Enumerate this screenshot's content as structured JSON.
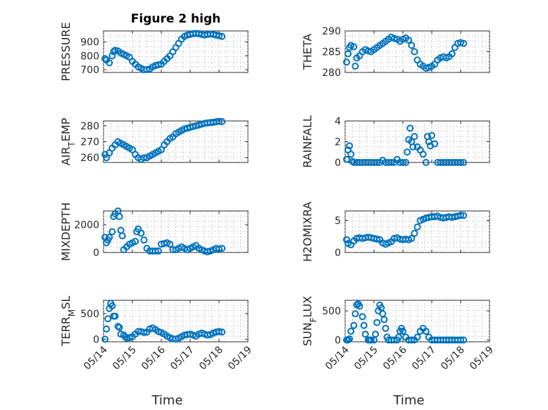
{
  "figure": {
    "title": "Figure 2 high",
    "background": "#ffffff",
    "marker_color": "#0072bd"
  },
  "chart_data": [
    {
      "type": "scatter",
      "ylabel": "PRESSURE",
      "xlabel": "",
      "ylim": [
        680,
        980
      ],
      "yticks": [
        700,
        800,
        900
      ],
      "x_ticks": [
        "05/14",
        "05/15",
        "05/16",
        "05/17",
        "05/18",
        "05/19"
      ],
      "show_x_tick_labels": false,
      "title": "Figure 2 high",
      "grid": true,
      "series": [
        {
          "x": [
            0.05,
            0.1,
            0.2,
            0.3,
            0.35,
            0.4,
            0.5,
            0.6,
            0.7,
            0.8,
            0.9,
            1.0,
            1.1,
            1.2,
            1.3,
            1.4,
            1.5,
            1.6,
            1.7,
            1.8,
            1.9,
            2.0,
            2.1,
            2.2,
            2.3,
            2.4,
            2.5,
            2.6,
            2.7,
            2.8,
            2.9,
            3.0,
            3.1,
            3.2,
            3.3,
            3.4,
            3.5,
            3.6,
            3.7,
            3.8,
            3.9,
            4.0,
            4.1
          ],
          "y": [
            780,
            770,
            750,
            800,
            830,
            840,
            835,
            820,
            810,
            800,
            790,
            760,
            740,
            720,
            710,
            700,
            700,
            705,
            720,
            730,
            735,
            740,
            760,
            780,
            800,
            830,
            860,
            890,
            920,
            940,
            950,
            955,
            960,
            962,
            960,
            955,
            950,
            955,
            958,
            955,
            950,
            945,
            940
          ]
        }
      ]
    },
    {
      "type": "scatter",
      "ylabel": "THETA",
      "xlabel": "",
      "ylim": [
        280,
        290
      ],
      "yticks": [
        280,
        285,
        290
      ],
      "x_ticks": [
        "05/14",
        "05/15",
        "05/16",
        "05/17",
        "05/18",
        "05/19"
      ],
      "show_x_tick_labels": false,
      "grid": true,
      "series": [
        {
          "x": [
            0.05,
            0.1,
            0.15,
            0.2,
            0.3,
            0.35,
            0.4,
            0.5,
            0.6,
            0.7,
            0.8,
            0.9,
            1.0,
            1.1,
            1.2,
            1.3,
            1.4,
            1.5,
            1.6,
            1.7,
            1.8,
            1.9,
            2.0,
            2.1,
            2.2,
            2.3,
            2.4,
            2.5,
            2.6,
            2.7,
            2.8,
            2.9,
            3.0,
            3.1,
            3.2,
            3.3,
            3.4,
            3.5,
            3.6,
            3.7,
            3.8,
            3.9,
            4.0,
            4.1
          ],
          "y": [
            282.5,
            284.5,
            286,
            286.5,
            286.2,
            281.5,
            283.5,
            284,
            285,
            285.5,
            285.2,
            285,
            285.5,
            286,
            286.5,
            287,
            287.5,
            288,
            288.5,
            288.2,
            288,
            287.5,
            288,
            288.3,
            287.8,
            286.5,
            285,
            283,
            282,
            281.5,
            281,
            281.2,
            281.5,
            282,
            283,
            283.5,
            283.8,
            283.5,
            283.8,
            284.5,
            286,
            287,
            287.2,
            287
          ]
        }
      ]
    },
    {
      "type": "scatter",
      "ylabel": "AIR_TEMP",
      "xlabel": "",
      "ylim": [
        257,
        283
      ],
      "yticks": [
        260,
        270,
        280
      ],
      "x_ticks": [
        "05/14",
        "05/15",
        "05/16",
        "05/17",
        "05/18",
        "05/19"
      ],
      "show_x_tick_labels": false,
      "grid": true,
      "series": [
        {
          "x": [
            0.05,
            0.1,
            0.2,
            0.3,
            0.4,
            0.5,
            0.6,
            0.7,
            0.8,
            0.9,
            1.0,
            1.1,
            1.2,
            1.3,
            1.4,
            1.5,
            1.6,
            1.7,
            1.8,
            1.9,
            2.0,
            2.1,
            2.2,
            2.3,
            2.4,
            2.5,
            2.6,
            2.7,
            2.8,
            2.9,
            3.0,
            3.1,
            3.2,
            3.3,
            3.4,
            3.5,
            3.6,
            3.7,
            3.8,
            3.9,
            4.0,
            4.1
          ],
          "y": [
            262,
            260,
            263,
            266,
            268,
            270,
            269,
            268,
            267,
            266,
            265,
            262,
            260,
            259,
            260,
            260,
            261,
            262,
            263,
            264,
            265,
            268,
            270,
            272,
            273,
            275,
            276,
            277,
            278,
            278.5,
            279,
            279.5,
            280,
            280.5,
            281,
            281.5,
            281.8,
            282,
            282.2,
            282.5,
            282.8,
            282.6
          ]
        }
      ]
    },
    {
      "type": "scatter",
      "ylabel": "RAINFALL",
      "xlabel": "",
      "ylim": [
        0,
        4
      ],
      "yticks": [
        0,
        2,
        4
      ],
      "x_ticks": [
        "05/14",
        "05/15",
        "05/16",
        "05/17",
        "05/18",
        "05/19"
      ],
      "show_x_tick_labels": false,
      "grid": true,
      "series": [
        {
          "x": [
            0.05,
            0.1,
            0.15,
            0.2,
            0.25,
            0.3,
            0.4,
            0.5,
            0.6,
            0.7,
            0.8,
            0.9,
            1.0,
            1.1,
            1.2,
            1.3,
            1.4,
            1.5,
            1.6,
            1.7,
            1.8,
            1.9,
            2.0,
            2.1,
            2.15,
            2.2,
            2.25,
            2.3,
            2.35,
            2.4,
            2.5,
            2.6,
            2.7,
            2.8,
            2.85,
            2.9,
            2.95,
            3.0,
            3.1,
            3.2,
            3.3,
            3.4,
            3.5,
            3.6,
            3.7,
            3.8,
            3.9,
            4.0,
            4.1
          ],
          "y": [
            0.3,
            1.2,
            1.6,
            0.8,
            0.1,
            0,
            0,
            0,
            0,
            0,
            0,
            0,
            0,
            0,
            0,
            0.2,
            0,
            0,
            0,
            0,
            0.3,
            0,
            0,
            0,
            1.0,
            2.2,
            3.3,
            2.0,
            1.5,
            2.5,
            1.5,
            1.2,
            0.8,
            0,
            2.5,
            2.0,
            1.6,
            2.6,
            1.8,
            0,
            0,
            0,
            0,
            0,
            0,
            0,
            0,
            0,
            0
          ]
        }
      ]
    },
    {
      "type": "scatter",
      "ylabel": "MIXDEPTH",
      "xlabel": "",
      "ylim": [
        0,
        3000
      ],
      "yticks": [
        0,
        2000
      ],
      "x_ticks": [
        "05/14",
        "05/15",
        "05/16",
        "05/17",
        "05/18",
        "05/19"
      ],
      "show_x_tick_labels": false,
      "grid": true,
      "series": [
        {
          "x": [
            0.05,
            0.1,
            0.15,
            0.2,
            0.3,
            0.35,
            0.4,
            0.5,
            0.55,
            0.6,
            0.65,
            0.7,
            0.8,
            0.9,
            1.0,
            1.1,
            1.15,
            1.2,
            1.3,
            1.4,
            1.5,
            1.6,
            1.7,
            1.8,
            1.9,
            2.0,
            2.1,
            2.2,
            2.3,
            2.4,
            2.5,
            2.6,
            2.7,
            2.8,
            2.9,
            3.0,
            3.1,
            3.2,
            3.3,
            3.4,
            3.5,
            3.6,
            3.7,
            3.8,
            3.9,
            4.0,
            4.1
          ],
          "y": [
            1100,
            700,
            900,
            1100,
            1500,
            2600,
            2800,
            3000,
            2600,
            1600,
            1200,
            200,
            400,
            600,
            700,
            800,
            1500,
            1700,
            1400,
            900,
            300,
            100,
            100,
            100,
            100,
            600,
            650,
            700,
            600,
            200,
            200,
            300,
            400,
            300,
            200,
            300,
            400,
            500,
            300,
            200,
            100,
            50,
            100,
            200,
            300,
            250,
            300
          ]
        }
      ]
    },
    {
      "type": "scatter",
      "ylabel": "H2OMIXRA",
      "xlabel": "",
      "ylim": [
        0,
        6.5
      ],
      "yticks": [
        0,
        5
      ],
      "x_ticks": [
        "05/14",
        "05/15",
        "05/16",
        "05/17",
        "05/18",
        "05/19"
      ],
      "show_x_tick_labels": false,
      "grid": true,
      "series": [
        {
          "x": [
            0.05,
            0.1,
            0.2,
            0.3,
            0.4,
            0.5,
            0.6,
            0.7,
            0.8,
            0.9,
            1.0,
            1.1,
            1.2,
            1.3,
            1.4,
            1.5,
            1.6,
            1.7,
            1.8,
            1.9,
            2.0,
            2.1,
            2.2,
            2.3,
            2.4,
            2.5,
            2.6,
            2.7,
            2.8,
            2.9,
            3.0,
            3.1,
            3.2,
            3.3,
            3.4,
            3.5,
            3.6,
            3.7,
            3.8,
            3.9,
            4.0,
            4.1
          ],
          "y": [
            2.0,
            1.4,
            1.2,
            1.8,
            2.2,
            2.3,
            2.2,
            2.3,
            2.4,
            2.3,
            2.2,
            2.1,
            2.0,
            1.5,
            1.3,
            1.5,
            1.7,
            2.2,
            2.3,
            2.1,
            2.0,
            2.1,
            2.0,
            2.2,
            3.0,
            4.0,
            5.0,
            5.2,
            5.4,
            5.5,
            5.6,
            5.6,
            5.7,
            5.5,
            5.4,
            5.5,
            5.6,
            5.5,
            5.6,
            5.7,
            5.8,
            5.8
          ]
        }
      ]
    },
    {
      "type": "scatter",
      "ylabel": "TERR_MSL",
      "xlabel": "Time",
      "ylim": [
        -50,
        760
      ],
      "yticks": [
        0,
        500
      ],
      "x_ticks": [
        "05/14",
        "05/15",
        "05/16",
        "05/17",
        "05/18",
        "05/19"
      ],
      "show_x_tick_labels": true,
      "grid": true,
      "series": [
        {
          "x": [
            0.05,
            0.1,
            0.15,
            0.2,
            0.25,
            0.3,
            0.35,
            0.4,
            0.5,
            0.55,
            0.6,
            0.7,
            0.75,
            0.8,
            0.9,
            1.0,
            1.1,
            1.2,
            1.3,
            1.4,
            1.5,
            1.6,
            1.7,
            1.8,
            1.9,
            2.0,
            2.1,
            2.2,
            2.3,
            2.4,
            2.5,
            2.6,
            2.7,
            2.8,
            2.9,
            3.0,
            3.1,
            3.2,
            3.3,
            3.4,
            3.5,
            3.6,
            3.7,
            3.8,
            3.9,
            4.0,
            4.1
          ],
          "y": [
            0,
            200,
            400,
            600,
            700,
            650,
            450,
            450,
            250,
            230,
            100,
            80,
            50,
            20,
            30,
            50,
            100,
            150,
            150,
            130,
            140,
            200,
            220,
            190,
            150,
            130,
            100,
            60,
            30,
            10,
            0,
            20,
            50,
            80,
            90,
            100,
            80,
            60,
            100,
            120,
            100,
            80,
            90,
            120,
            140,
            150,
            140
          ]
        }
      ]
    },
    {
      "type": "scatter",
      "ylabel": "SUN_FLUX",
      "xlabel": "Time",
      "ylim": [
        -30,
        680
      ],
      "yticks": [
        0,
        500
      ],
      "x_ticks": [
        "05/14",
        "05/15",
        "05/16",
        "05/17",
        "05/18",
        "05/19"
      ],
      "show_x_tick_labels": true,
      "grid": true,
      "series": [
        {
          "x": [
            0.05,
            0.1,
            0.15,
            0.2,
            0.3,
            0.35,
            0.4,
            0.45,
            0.5,
            0.6,
            0.65,
            0.7,
            0.8,
            0.85,
            0.9,
            1.0,
            1.05,
            1.1,
            1.15,
            1.2,
            1.25,
            1.3,
            1.35,
            1.4,
            1.45,
            1.5,
            1.6,
            1.7,
            1.8,
            1.85,
            1.9,
            1.95,
            2.0,
            2.1,
            2.2,
            2.3,
            2.4,
            2.5,
            2.6,
            2.7,
            2.8,
            2.9,
            3.0,
            3.1,
            3.2,
            3.3,
            3.4,
            3.5,
            3.6,
            3.7,
            3.8,
            3.9,
            4.0,
            4.1
          ],
          "y": [
            0,
            0,
            20,
            150,
            250,
            450,
            600,
            620,
            580,
            400,
            250,
            100,
            0,
            0,
            0,
            0,
            100,
            300,
            500,
            600,
            550,
            450,
            350,
            200,
            50,
            0,
            0,
            0,
            0,
            50,
            150,
            200,
            150,
            50,
            0,
            0,
            0,
            50,
            150,
            200,
            150,
            50,
            0,
            0,
            0,
            0,
            0,
            0,
            0,
            0,
            0,
            0,
            0,
            0
          ]
        }
      ]
    }
  ]
}
